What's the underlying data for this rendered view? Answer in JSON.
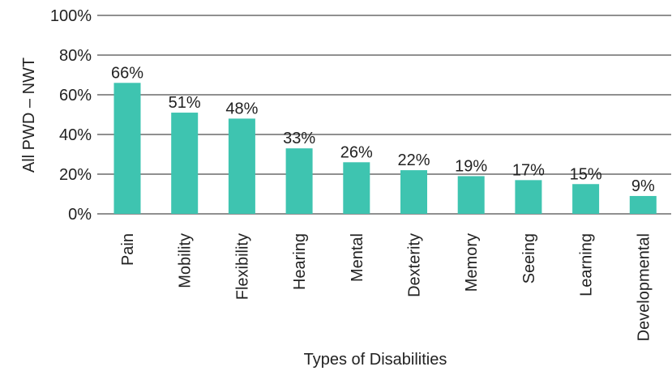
{
  "chart_data": {
    "type": "bar",
    "xlabel": "Types of Disabilities",
    "ylabel": "All PWD – NWT",
    "ylim": [
      0,
      100
    ],
    "yticks": [
      "0%",
      "20%",
      "40%",
      "60%",
      "80%",
      "100%"
    ],
    "ytick_values": [
      0,
      20,
      40,
      60,
      80,
      100
    ],
    "categories": [
      "Pain",
      "Mobility",
      "Flexibility",
      "Hearing",
      "Mental",
      "Dexterity",
      "Memory",
      "Seeing",
      "Learning",
      "Developmental"
    ],
    "values": [
      66,
      51,
      48,
      33,
      26,
      22,
      19,
      17,
      15,
      9
    ],
    "data_labels": [
      "66%",
      "51%",
      "48%",
      "33%",
      "26%",
      "22%",
      "19%",
      "17%",
      "15%",
      "9%"
    ],
    "bar_color": "#3ec4b0",
    "grid": true,
    "legend": "none"
  }
}
